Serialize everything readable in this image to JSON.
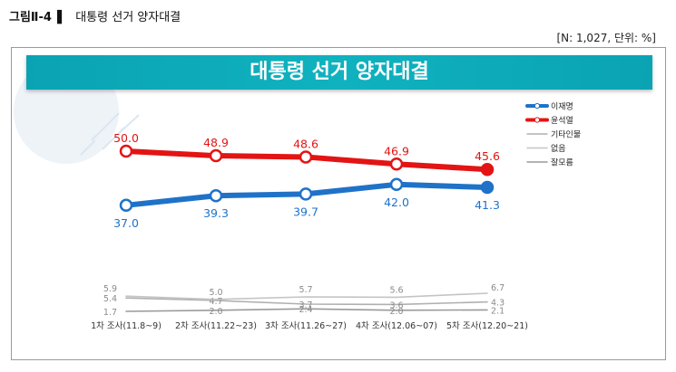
{
  "caption": {
    "figure_no": "그림Ⅱ-4",
    "bar": "▌",
    "title": "대통령 선거 양자대결"
  },
  "note": "[N: 1,027, 단위: %]",
  "chart_data": {
    "type": "line",
    "title": "대통령 선거 양자대결",
    "categories": [
      "1차 조사(11.8~9)",
      "2차 조사(11.22~23)",
      "3차 조사(11.26~27)",
      "4차 조사(12.06~07)",
      "5차 조사(12.20~21)"
    ],
    "series": [
      {
        "name": "이재명",
        "values": [
          37.0,
          39.3,
          39.7,
          42.0,
          41.3
        ],
        "color": "#1f72c8",
        "labels": [
          "37.0",
          "39.3",
          "39.7",
          "42.0",
          "41.3"
        ],
        "label_pos": "below"
      },
      {
        "name": "윤석열",
        "values": [
          50.0,
          48.9,
          48.6,
          46.9,
          45.6
        ],
        "color": "#e31414",
        "labels": [
          "50.0",
          "48.9",
          "48.6",
          "46.9",
          "45.6"
        ],
        "label_pos": "above"
      },
      {
        "name": "기타인물",
        "values": [
          5.4,
          4.7,
          3.7,
          3.6,
          4.3
        ],
        "color": "#b0b0b0",
        "labels": [
          "5.4",
          "4.7",
          "3.7",
          "3.6",
          "4.3"
        ],
        "label_pos": "left"
      },
      {
        "name": "없음",
        "values": [
          5.9,
          5.0,
          5.7,
          5.6,
          6.7
        ],
        "color": "#c4c4c4",
        "labels": [
          "5.9",
          "5.0",
          "5.7",
          "5.6",
          "6.7"
        ],
        "label_pos": "above"
      },
      {
        "name": "잘모름",
        "values": [
          1.7,
          2.0,
          2.4,
          2.0,
          2.1
        ],
        "color": "#9a9a9a",
        "labels": [
          "1.7",
          "2.0",
          "2.4",
          "2.0",
          "2.1"
        ],
        "label_pos": "left"
      }
    ],
    "legend_position": "top-right",
    "grid": false
  }
}
